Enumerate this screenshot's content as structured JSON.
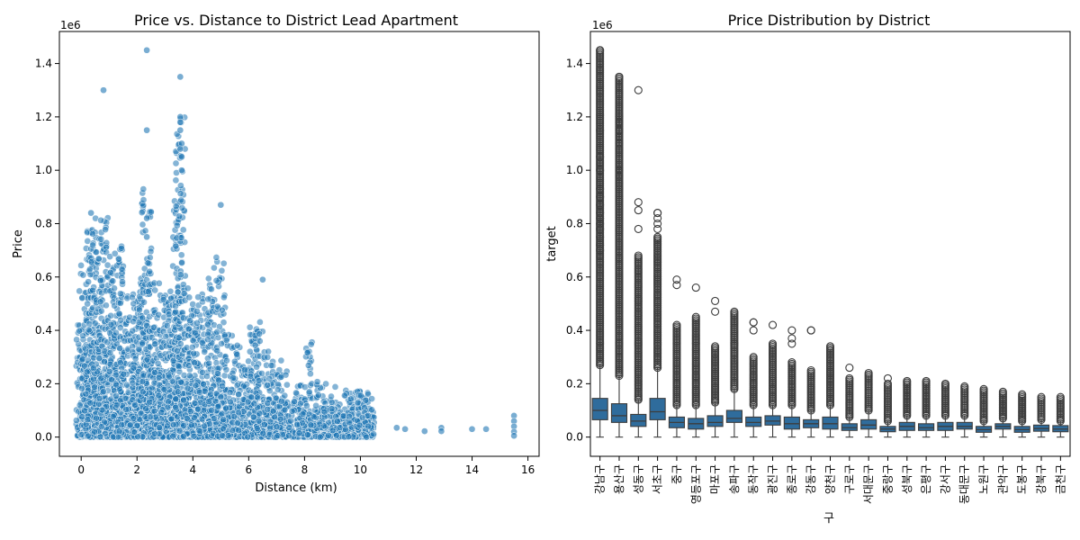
{
  "colors": {
    "series": "#1f77b4",
    "box": "#2f6c9c",
    "edge": "#3d3d3d"
  },
  "chart_data": [
    {
      "type": "scatter",
      "title": "Price vs. Distance to District Lead Apartment",
      "xlabel": "Distance (km)",
      "ylabel": "Price",
      "y_offset_label": "1e6",
      "xlim": [
        -0.78,
        16.4
      ],
      "ylim": [
        -0.072,
        1.52
      ],
      "xticks": [
        "0",
        "2",
        "4",
        "6",
        "8",
        "10",
        "12",
        "14",
        "16"
      ],
      "yticks": [
        "0.0",
        "0.2",
        "0.4",
        "0.6",
        "0.8",
        "1.0",
        "1.2",
        "1.4"
      ],
      "grid": false,
      "x_value_ticks": [
        0,
        2,
        4,
        6,
        8,
        10,
        12,
        14,
        16
      ],
      "y_value_ticks": [
        0,
        0.2,
        0.4,
        0.6,
        0.8,
        1.0,
        1.2,
        1.4
      ],
      "clusters": [
        {
          "x": 0.0,
          "max": 0.65
        },
        {
          "x": 0.2,
          "max": 0.55
        },
        {
          "x": 0.35,
          "max": 0.84
        },
        {
          "x": 0.45,
          "max": 0.8
        },
        {
          "x": 0.6,
          "max": 0.6
        },
        {
          "x": 0.8,
          "max": 0.88
        },
        {
          "x": 1.0,
          "max": 0.62
        },
        {
          "x": 1.2,
          "max": 0.7
        },
        {
          "x": 1.35,
          "max": 0.75
        },
        {
          "x": 1.55,
          "max": 0.55
        },
        {
          "x": 1.8,
          "max": 0.5
        },
        {
          "x": 2.0,
          "max": 0.55
        },
        {
          "x": 2.2,
          "max": 0.6
        },
        {
          "x": 2.35,
          "max": 0.93
        },
        {
          "x": 2.5,
          "max": 0.65
        },
        {
          "x": 2.7,
          "max": 0.5
        },
        {
          "x": 2.9,
          "max": 0.58
        },
        {
          "x": 3.1,
          "max": 0.52
        },
        {
          "x": 3.3,
          "max": 0.55
        },
        {
          "x": 3.45,
          "max": 0.9
        },
        {
          "x": 3.55,
          "max": 1.2
        },
        {
          "x": 3.8,
          "max": 0.6
        },
        {
          "x": 4.0,
          "max": 0.5
        },
        {
          "x": 4.2,
          "max": 0.55
        },
        {
          "x": 4.5,
          "max": 0.5
        },
        {
          "x": 4.7,
          "max": 0.65
        },
        {
          "x": 5.0,
          "max": 0.68
        },
        {
          "x": 5.3,
          "max": 0.4
        },
        {
          "x": 5.6,
          "max": 0.35
        },
        {
          "x": 5.9,
          "max": 0.3
        },
        {
          "x": 6.2,
          "max": 0.42
        },
        {
          "x": 6.4,
          "max": 0.44
        },
        {
          "x": 6.8,
          "max": 0.33
        },
        {
          "x": 7.2,
          "max": 0.3
        },
        {
          "x": 7.8,
          "max": 0.2
        },
        {
          "x": 8.15,
          "max": 0.4
        },
        {
          "x": 8.6,
          "max": 0.22
        },
        {
          "x": 9.1,
          "max": 0.19
        },
        {
          "x": 9.6,
          "max": 0.18
        },
        {
          "x": 10.0,
          "max": 0.18
        },
        {
          "x": 10.3,
          "max": 0.17
        }
      ],
      "points": [
        {
          "x": 0.8,
          "y": 1.3
        },
        {
          "x": 2.35,
          "y": 1.45
        },
        {
          "x": 2.35,
          "y": 1.15
        },
        {
          "x": 3.55,
          "y": 1.35
        },
        {
          "x": 3.55,
          "y": 1.2
        },
        {
          "x": 3.55,
          "y": 1.18
        },
        {
          "x": 3.55,
          "y": 1.15
        },
        {
          "x": 3.6,
          "y": 1.1
        },
        {
          "x": 3.55,
          "y": 1.08
        },
        {
          "x": 3.6,
          "y": 1.05
        },
        {
          "x": 3.6,
          "y": 1.0
        },
        {
          "x": 5.0,
          "y": 0.87
        },
        {
          "x": 2.35,
          "y": 0.82
        },
        {
          "x": 2.35,
          "y": 0.75
        },
        {
          "x": 0.35,
          "y": 0.84
        },
        {
          "x": 6.5,
          "y": 0.59
        },
        {
          "x": 11.3,
          "y": 0.035
        },
        {
          "x": 11.6,
          "y": 0.03
        },
        {
          "x": 12.3,
          "y": 0.022
        },
        {
          "x": 12.9,
          "y": 0.035
        },
        {
          "x": 12.9,
          "y": 0.022
        },
        {
          "x": 14.0,
          "y": 0.03
        },
        {
          "x": 14.5,
          "y": 0.03
        },
        {
          "x": 15.5,
          "y": 0.08
        },
        {
          "x": 15.5,
          "y": 0.06
        },
        {
          "x": 15.5,
          "y": 0.04
        },
        {
          "x": 15.5,
          "y": 0.02
        },
        {
          "x": 15.5,
          "y": 0.005
        }
      ]
    },
    {
      "type": "box",
      "title": "Price Distribution by District",
      "xlabel": "구",
      "ylabel": "target",
      "y_offset_label": "1e6",
      "ylim": [
        -0.072,
        1.52
      ],
      "yticks": [
        "0.0",
        "0.2",
        "0.4",
        "0.6",
        "0.8",
        "1.0",
        "1.2",
        "1.4"
      ],
      "y_value_ticks": [
        0,
        0.2,
        0.4,
        0.6,
        0.8,
        1.0,
        1.2,
        1.4
      ],
      "grid": false,
      "categories": [
        "강남구",
        "용산구",
        "성동구",
        "서초구",
        "중구",
        "영등포구",
        "마포구",
        "송파구",
        "동작구",
        "광진구",
        "종로구",
        "강동구",
        "양천구",
        "구로구",
        "서대문구",
        "중랑구",
        "성북구",
        "은평구",
        "강서구",
        "동대문구",
        "노원구",
        "관악구",
        "도봉구",
        "강북구",
        "금천구"
      ],
      "boxes": [
        {
          "min": 0.0,
          "q1": 0.065,
          "median": 0.1,
          "q3": 0.145,
          "max": 0.27,
          "outlier_max": 1.45,
          "sparse": [
            1.45,
            1.15,
            1.05,
            1.0,
            0.93,
            0.9,
            0.87,
            0.84,
            0.82,
            0.8,
            0.78,
            0.75,
            0.72,
            0.7
          ]
        },
        {
          "min": 0.0,
          "q1": 0.055,
          "median": 0.08,
          "q3": 0.125,
          "max": 0.23,
          "outlier_max": 1.35,
          "sparse": [
            1.35,
            1.2,
            1.18,
            1.15,
            1.1,
            1.08,
            1.0,
            0.98,
            0.95,
            0.93
          ]
        },
        {
          "min": 0.0,
          "q1": 0.04,
          "median": 0.06,
          "q3": 0.085,
          "max": 0.14,
          "outlier_max": 0.68,
          "sparse": [
            1.3,
            0.88,
            0.85,
            0.78
          ]
        },
        {
          "min": 0.0,
          "q1": 0.065,
          "median": 0.095,
          "q3": 0.145,
          "max": 0.26,
          "outlier_max": 0.75,
          "sparse": [
            0.84,
            0.84,
            0.82,
            0.8,
            0.78
          ]
        },
        {
          "min": 0.0,
          "q1": 0.035,
          "median": 0.055,
          "q3": 0.075,
          "max": 0.12,
          "outlier_max": 0.42,
          "sparse": [
            0.59,
            0.57
          ]
        },
        {
          "min": 0.0,
          "q1": 0.03,
          "median": 0.05,
          "q3": 0.07,
          "max": 0.12,
          "outlier_max": 0.45,
          "sparse": [
            0.56
          ]
        },
        {
          "min": 0.0,
          "q1": 0.04,
          "median": 0.055,
          "q3": 0.08,
          "max": 0.13,
          "outlier_max": 0.34,
          "sparse": [
            0.51,
            0.47
          ]
        },
        {
          "min": 0.0,
          "q1": 0.055,
          "median": 0.07,
          "q3": 0.1,
          "max": 0.18,
          "outlier_max": 0.47,
          "sparse": []
        },
        {
          "min": 0.0,
          "q1": 0.04,
          "median": 0.055,
          "q3": 0.075,
          "max": 0.12,
          "outlier_max": 0.3,
          "sparse": [
            0.43,
            0.43,
            0.4
          ]
        },
        {
          "min": 0.0,
          "q1": 0.045,
          "median": 0.06,
          "q3": 0.08,
          "max": 0.12,
          "outlier_max": 0.35,
          "sparse": [
            0.42
          ]
        },
        {
          "min": 0.0,
          "q1": 0.03,
          "median": 0.05,
          "q3": 0.075,
          "max": 0.12,
          "outlier_max": 0.28,
          "sparse": [
            0.4,
            0.37,
            0.35
          ]
        },
        {
          "min": 0.0,
          "q1": 0.035,
          "median": 0.05,
          "q3": 0.065,
          "max": 0.1,
          "outlier_max": 0.25,
          "sparse": [
            0.4,
            0.4
          ]
        },
        {
          "min": 0.0,
          "q1": 0.03,
          "median": 0.05,
          "q3": 0.075,
          "max": 0.12,
          "outlier_max": 0.34,
          "sparse": []
        },
        {
          "min": 0.0,
          "q1": 0.025,
          "median": 0.035,
          "q3": 0.05,
          "max": 0.075,
          "outlier_max": 0.22,
          "sparse": [
            0.26
          ]
        },
        {
          "min": 0.0,
          "q1": 0.03,
          "median": 0.045,
          "q3": 0.065,
          "max": 0.1,
          "outlier_max": 0.24,
          "sparse": []
        },
        {
          "min": 0.0,
          "q1": 0.02,
          "median": 0.03,
          "q3": 0.04,
          "max": 0.06,
          "outlier_max": 0.2,
          "sparse": [
            0.22
          ]
        },
        {
          "min": 0.0,
          "q1": 0.025,
          "median": 0.04,
          "q3": 0.055,
          "max": 0.08,
          "outlier_max": 0.21,
          "sparse": []
        },
        {
          "min": 0.0,
          "q1": 0.025,
          "median": 0.035,
          "q3": 0.05,
          "max": 0.08,
          "outlier_max": 0.21,
          "sparse": []
        },
        {
          "min": 0.0,
          "q1": 0.025,
          "median": 0.04,
          "q3": 0.055,
          "max": 0.08,
          "outlier_max": 0.2,
          "sparse": []
        },
        {
          "min": 0.0,
          "q1": 0.03,
          "median": 0.04,
          "q3": 0.055,
          "max": 0.08,
          "outlier_max": 0.19,
          "sparse": []
        },
        {
          "min": 0.0,
          "q1": 0.018,
          "median": 0.028,
          "q3": 0.04,
          "max": 0.06,
          "outlier_max": 0.18,
          "sparse": []
        },
        {
          "min": 0.0,
          "q1": 0.03,
          "median": 0.04,
          "q3": 0.05,
          "max": 0.07,
          "outlier_max": 0.17,
          "sparse": []
        },
        {
          "min": 0.0,
          "q1": 0.018,
          "median": 0.028,
          "q3": 0.04,
          "max": 0.06,
          "outlier_max": 0.16,
          "sparse": []
        },
        {
          "min": 0.0,
          "q1": 0.022,
          "median": 0.032,
          "q3": 0.045,
          "max": 0.065,
          "outlier_max": 0.15,
          "sparse": []
        },
        {
          "min": 0.0,
          "q1": 0.02,
          "median": 0.03,
          "q3": 0.043,
          "max": 0.06,
          "outlier_max": 0.15,
          "sparse": []
        }
      ]
    }
  ]
}
